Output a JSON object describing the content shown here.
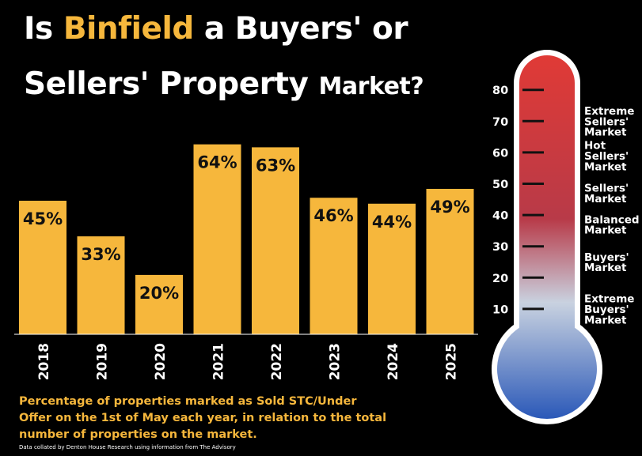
{
  "title": {
    "prefix": "Is",
    "highlight": "Binfield",
    "suffix_line1": "a Buyers' or",
    "line2_main": "Sellers' Property",
    "line2_small": "Market?"
  },
  "colors": {
    "background": "#000000",
    "bar": "#F6B73C",
    "highlight": "#F6B73C",
    "thermo_top": "#E03A36",
    "thermo_mid": "#C9D2E0",
    "thermo_bottom": "#2A58B8"
  },
  "chart_data": [
    {
      "type": "bar",
      "categories": [
        "2018",
        "2019",
        "2020",
        "2021",
        "2022",
        "2023",
        "2024",
        "2025"
      ],
      "values": [
        45,
        33,
        20,
        64,
        63,
        46,
        44,
        49
      ],
      "data_labels": [
        "45%",
        "33%",
        "20%",
        "64%",
        "63%",
        "46%",
        "44%",
        "49%"
      ],
      "unit": "%",
      "ylim": [
        0,
        80
      ],
      "grid": false
    },
    {
      "type": "thermometer",
      "ticks": [
        80,
        70,
        60,
        50,
        40,
        30,
        20,
        10
      ],
      "ylim": [
        0,
        85
      ],
      "zones": [
        {
          "label": [
            "Extreme",
            "Sellers'",
            "Market"
          ],
          "y": 70
        },
        {
          "label": [
            "Hot",
            "Sellers'",
            "Market"
          ],
          "y": 59
        },
        {
          "label": [
            "Sellers'",
            "Market"
          ],
          "y": 47
        },
        {
          "label": [
            "Balanced",
            "Market"
          ],
          "y": 37
        },
        {
          "label": [
            "Buyers'",
            "Market"
          ],
          "y": 25
        },
        {
          "label": [
            "Extreme",
            "Buyers'",
            "Market"
          ],
          "y": 10
        }
      ]
    }
  ],
  "footnote": "Percentage of properties marked as Sold STC/Under Offer on the 1st of May each year, in relation to the total number of properties on the market.",
  "credit": "Data collated by Denton House Research using information from The Advisory"
}
